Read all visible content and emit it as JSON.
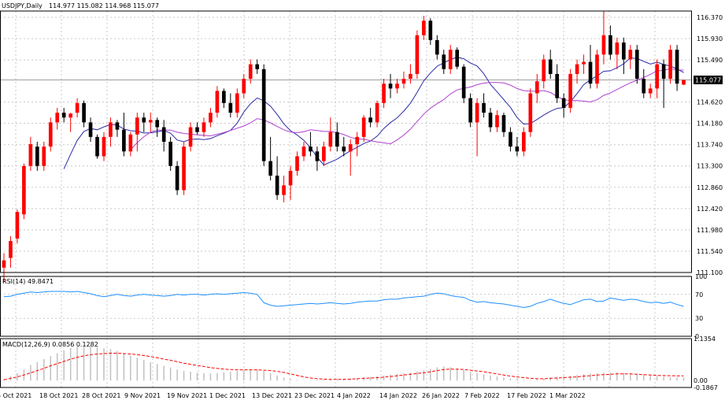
{
  "header": {
    "symbol_tf": "USDJPY,Daily",
    "ohlc": "114.977 115.082 114.968 115.077"
  },
  "current_price_label": "115.077",
  "colors": {
    "bull": "#ff0000",
    "bear": "#000000",
    "ma_fast": "#2a2aa8",
    "ma_slow": "#b040d0",
    "rsi": "#1e90ff",
    "macd_hist": "#c0c0c0",
    "macd_signal": "#ff0000",
    "grid": "#c8c8c8"
  },
  "chart_data": [
    {
      "type": "candlestick",
      "title": "USDJPY,Daily",
      "ylim": [
        111.1,
        116.5
      ],
      "y_ticks": [
        "116.370",
        "115.930",
        "115.490",
        "115.077",
        "114.620",
        "114.180",
        "113.740",
        "113.300",
        "112.860",
        "112.420",
        "111.980",
        "111.540",
        "111.100"
      ],
      "x_ticks": [
        "5 Oct 2021",
        "18 Oct 2021",
        "28 Oct 2021",
        "9 Nov 2021",
        "19 Nov 2021",
        "1 Dec 2021",
        "13 Dec 2021",
        "23 Dec 2021",
        "4 Jan 2022",
        "14 Jan 2022",
        "26 Jan 2022",
        "7 Feb 2022",
        "17 Feb 2022",
        "1 Mar 2022"
      ],
      "candles": [
        {
          "o": 111.2,
          "h": 111.5,
          "l": 110.9,
          "c": 111.35
        },
        {
          "o": 111.4,
          "h": 111.85,
          "l": 111.2,
          "c": 111.75
        },
        {
          "o": 111.8,
          "h": 112.4,
          "l": 111.7,
          "c": 112.35
        },
        {
          "o": 112.3,
          "h": 113.35,
          "l": 112.2,
          "c": 113.3
        },
        {
          "o": 113.3,
          "h": 113.9,
          "l": 113.2,
          "c": 113.75
        },
        {
          "o": 113.7,
          "h": 113.8,
          "l": 113.2,
          "c": 113.3
        },
        {
          "o": 113.3,
          "h": 113.8,
          "l": 113.2,
          "c": 113.7
        },
        {
          "o": 113.7,
          "h": 114.3,
          "l": 113.6,
          "c": 114.2
        },
        {
          "o": 114.2,
          "h": 114.5,
          "l": 114.05,
          "c": 114.4
        },
        {
          "o": 114.4,
          "h": 114.5,
          "l": 114.2,
          "c": 114.3
        },
        {
          "o": 114.3,
          "h": 114.4,
          "l": 114.0,
          "c": 114.38
        },
        {
          "o": 114.4,
          "h": 114.7,
          "l": 114.3,
          "c": 114.6
        },
        {
          "o": 114.6,
          "h": 114.65,
          "l": 114.1,
          "c": 114.2
        },
        {
          "o": 114.2,
          "h": 114.3,
          "l": 113.8,
          "c": 113.9
        },
        {
          "o": 113.9,
          "h": 113.95,
          "l": 113.45,
          "c": 113.5
        },
        {
          "o": 113.5,
          "h": 114.0,
          "l": 113.4,
          "c": 113.9
        },
        {
          "o": 113.9,
          "h": 114.3,
          "l": 113.7,
          "c": 114.2
        },
        {
          "o": 114.2,
          "h": 114.25,
          "l": 113.9,
          "c": 114.05
        },
        {
          "o": 114.05,
          "h": 114.4,
          "l": 113.5,
          "c": 113.6
        },
        {
          "o": 113.6,
          "h": 114.0,
          "l": 113.5,
          "c": 113.95
        },
        {
          "o": 113.95,
          "h": 114.4,
          "l": 113.6,
          "c": 114.3
        },
        {
          "o": 114.3,
          "h": 114.4,
          "l": 114.0,
          "c": 114.2
        },
        {
          "o": 114.2,
          "h": 114.4,
          "l": 114.0,
          "c": 114.25
        },
        {
          "o": 114.25,
          "h": 114.3,
          "l": 113.9,
          "c": 114.1
        },
        {
          "o": 114.1,
          "h": 114.25,
          "l": 113.6,
          "c": 113.8
        },
        {
          "o": 113.8,
          "h": 113.9,
          "l": 113.2,
          "c": 113.3
        },
        {
          "o": 113.3,
          "h": 113.4,
          "l": 112.7,
          "c": 112.8
        },
        {
          "o": 112.8,
          "h": 113.8,
          "l": 112.7,
          "c": 113.7
        },
        {
          "o": 113.7,
          "h": 114.2,
          "l": 113.6,
          "c": 114.1
        },
        {
          "o": 114.1,
          "h": 114.2,
          "l": 113.95,
          "c": 114.0
        },
        {
          "o": 114.0,
          "h": 114.3,
          "l": 113.9,
          "c": 114.2
        },
        {
          "o": 114.2,
          "h": 114.5,
          "l": 114.1,
          "c": 114.4
        },
        {
          "o": 114.4,
          "h": 114.95,
          "l": 114.3,
          "c": 114.85
        },
        {
          "o": 114.85,
          "h": 114.9,
          "l": 114.5,
          "c": 114.6
        },
        {
          "o": 114.6,
          "h": 114.8,
          "l": 114.3,
          "c": 114.4
        },
        {
          "o": 114.4,
          "h": 114.9,
          "l": 114.3,
          "c": 114.8
        },
        {
          "o": 114.8,
          "h": 115.2,
          "l": 114.7,
          "c": 115.1
        },
        {
          "o": 115.1,
          "h": 115.5,
          "l": 115.0,
          "c": 115.4
        },
        {
          "o": 115.4,
          "h": 115.5,
          "l": 115.2,
          "c": 115.3
        },
        {
          "o": 115.3,
          "h": 115.4,
          "l": 113.3,
          "c": 113.4
        },
        {
          "o": 113.4,
          "h": 113.9,
          "l": 113.0,
          "c": 113.1
        },
        {
          "o": 113.1,
          "h": 113.5,
          "l": 112.6,
          "c": 112.7
        },
        {
          "o": 112.7,
          "h": 113.1,
          "l": 112.55,
          "c": 112.9
        },
        {
          "o": 112.9,
          "h": 113.3,
          "l": 112.6,
          "c": 113.2
        },
        {
          "o": 113.2,
          "h": 113.6,
          "l": 113.1,
          "c": 113.5
        },
        {
          "o": 113.5,
          "h": 113.8,
          "l": 113.4,
          "c": 113.7
        },
        {
          "o": 113.7,
          "h": 114.0,
          "l": 113.5,
          "c": 113.6
        },
        {
          "o": 113.6,
          "h": 113.7,
          "l": 113.2,
          "c": 113.4
        },
        {
          "o": 113.4,
          "h": 113.8,
          "l": 113.3,
          "c": 113.7
        },
        {
          "o": 113.7,
          "h": 114.3,
          "l": 113.6,
          "c": 114.0
        },
        {
          "o": 114.0,
          "h": 114.2,
          "l": 113.6,
          "c": 113.7
        },
        {
          "o": 113.7,
          "h": 113.9,
          "l": 113.5,
          "c": 113.6
        },
        {
          "o": 113.6,
          "h": 113.85,
          "l": 113.1,
          "c": 113.75
        },
        {
          "o": 113.75,
          "h": 114.0,
          "l": 113.5,
          "c": 113.9
        },
        {
          "o": 113.9,
          "h": 114.35,
          "l": 113.8,
          "c": 114.3
        },
        {
          "o": 114.3,
          "h": 114.5,
          "l": 114.1,
          "c": 114.2
        },
        {
          "o": 114.2,
          "h": 114.65,
          "l": 114.1,
          "c": 114.6
        },
        {
          "o": 114.6,
          "h": 115.1,
          "l": 114.5,
          "c": 115.0
        },
        {
          "o": 115.0,
          "h": 115.2,
          "l": 114.7,
          "c": 114.9
        },
        {
          "o": 114.9,
          "h": 115.1,
          "l": 114.8,
          "c": 115.0
        },
        {
          "o": 115.0,
          "h": 115.25,
          "l": 114.9,
          "c": 115.1
        },
        {
          "o": 115.1,
          "h": 115.4,
          "l": 115.0,
          "c": 115.2
        },
        {
          "o": 115.2,
          "h": 116.1,
          "l": 115.1,
          "c": 116.0
        },
        {
          "o": 116.0,
          "h": 116.4,
          "l": 115.9,
          "c": 116.3
        },
        {
          "o": 116.3,
          "h": 116.35,
          "l": 115.8,
          "c": 115.9
        },
        {
          "o": 115.9,
          "h": 116.0,
          "l": 115.5,
          "c": 115.6
        },
        {
          "o": 115.6,
          "h": 115.7,
          "l": 115.2,
          "c": 115.3
        },
        {
          "o": 115.3,
          "h": 115.8,
          "l": 115.2,
          "c": 115.7
        },
        {
          "o": 115.7,
          "h": 115.75,
          "l": 115.3,
          "c": 115.35
        },
        {
          "o": 115.35,
          "h": 115.4,
          "l": 114.6,
          "c": 114.7
        },
        {
          "o": 114.7,
          "h": 114.8,
          "l": 114.1,
          "c": 114.2
        },
        {
          "o": 114.2,
          "h": 114.7,
          "l": 113.5,
          "c": 114.6
        },
        {
          "o": 114.6,
          "h": 114.8,
          "l": 114.3,
          "c": 114.4
        },
        {
          "o": 114.4,
          "h": 114.5,
          "l": 114.0,
          "c": 114.1
        },
        {
          "o": 114.1,
          "h": 114.45,
          "l": 114.0,
          "c": 114.35
        },
        {
          "o": 114.35,
          "h": 114.4,
          "l": 113.9,
          "c": 114.0
        },
        {
          "o": 114.0,
          "h": 114.1,
          "l": 113.6,
          "c": 113.7
        },
        {
          "o": 113.7,
          "h": 113.9,
          "l": 113.5,
          "c": 113.6
        },
        {
          "o": 113.6,
          "h": 114.1,
          "l": 113.5,
          "c": 114.0
        },
        {
          "o": 114.0,
          "h": 114.9,
          "l": 113.9,
          "c": 114.8
        },
        {
          "o": 114.8,
          "h": 115.2,
          "l": 114.6,
          "c": 115.05
        },
        {
          "o": 115.05,
          "h": 115.6,
          "l": 114.9,
          "c": 115.5
        },
        {
          "o": 115.5,
          "h": 115.7,
          "l": 115.1,
          "c": 115.2
        },
        {
          "o": 115.2,
          "h": 115.4,
          "l": 114.6,
          "c": 114.7
        },
        {
          "o": 114.7,
          "h": 114.8,
          "l": 114.3,
          "c": 114.5
        },
        {
          "o": 114.5,
          "h": 115.3,
          "l": 114.4,
          "c": 115.2
        },
        {
          "o": 115.2,
          "h": 115.5,
          "l": 115.0,
          "c": 115.4
        },
        {
          "o": 115.4,
          "h": 115.6,
          "l": 115.2,
          "c": 115.45
        },
        {
          "o": 115.45,
          "h": 115.8,
          "l": 114.9,
          "c": 115.0
        },
        {
          "o": 115.0,
          "h": 115.7,
          "l": 114.9,
          "c": 115.6
        },
        {
          "o": 115.6,
          "h": 116.5,
          "l": 115.4,
          "c": 116.0
        },
        {
          "o": 116.0,
          "h": 116.2,
          "l": 115.5,
          "c": 115.6
        },
        {
          "o": 115.6,
          "h": 115.95,
          "l": 115.3,
          "c": 115.85
        },
        {
          "o": 115.85,
          "h": 115.95,
          "l": 115.2,
          "c": 115.5
        },
        {
          "o": 115.5,
          "h": 115.8,
          "l": 115.3,
          "c": 115.7
        },
        {
          "o": 115.7,
          "h": 115.8,
          "l": 115.0,
          "c": 115.1
        },
        {
          "o": 115.1,
          "h": 115.3,
          "l": 114.7,
          "c": 114.8
        },
        {
          "o": 114.8,
          "h": 115.0,
          "l": 114.7,
          "c": 114.9
        },
        {
          "o": 114.9,
          "h": 115.5,
          "l": 114.7,
          "c": 115.4
        },
        {
          "o": 115.4,
          "h": 115.5,
          "l": 114.5,
          "c": 115.1
        },
        {
          "o": 115.1,
          "h": 115.8,
          "l": 115.0,
          "c": 115.7
        },
        {
          "o": 115.7,
          "h": 115.8,
          "l": 114.85,
          "c": 115.0
        },
        {
          "o": 114.98,
          "h": 115.08,
          "l": 114.97,
          "c": 115.077
        }
      ]
    },
    {
      "type": "line",
      "title": "RSI(14) 49.8471",
      "ylim": [
        0,
        100
      ],
      "y_ticks": [
        "100",
        "70",
        "30",
        "0"
      ],
      "values": [
        66,
        67,
        70,
        72,
        74,
        73,
        74,
        75,
        75,
        75,
        74,
        75,
        73,
        71,
        68,
        66,
        68,
        70,
        68,
        67,
        69,
        70,
        69,
        68,
        67,
        68,
        70,
        69,
        70,
        70,
        69,
        70,
        71,
        70,
        71,
        72,
        73,
        72,
        70,
        56,
        52,
        50,
        51,
        52,
        53,
        54,
        55,
        54,
        55,
        56,
        55,
        54,
        55,
        57,
        58,
        59,
        59,
        61,
        62,
        62,
        64,
        65,
        66,
        67,
        70,
        72,
        71,
        68,
        66,
        65,
        60,
        57,
        58,
        56,
        55,
        54,
        52,
        50,
        48,
        50,
        55,
        58,
        62,
        58,
        55,
        53,
        57,
        61,
        62,
        58,
        59,
        64,
        62,
        60,
        62,
        61,
        58,
        56,
        57,
        55,
        57,
        53,
        50
      ]
    },
    {
      "type": "bar",
      "title": "MACD(12,26,9) 0.0856 0.1282",
      "ylim": [
        -0.1867,
        1.1354
      ],
      "y_ticks": [
        "1.1354",
        "0.00",
        "-0.1867"
      ],
      "series": [
        {
          "name": "MACD",
          "values": [
            0.05,
            0.12,
            0.2,
            0.3,
            0.42,
            0.5,
            0.58,
            0.66,
            0.74,
            0.82,
            0.88,
            0.92,
            0.94,
            0.95,
            0.92,
            0.88,
            0.85,
            0.8,
            0.74,
            0.68,
            0.62,
            0.56,
            0.5,
            0.45,
            0.4,
            0.35,
            0.3,
            0.26,
            0.24,
            0.22,
            0.2,
            0.19,
            0.2,
            0.22,
            0.24,
            0.26,
            0.28,
            0.29,
            0.3,
            0.26,
            0.2,
            0.14,
            0.08,
            0.04,
            0.02,
            0.01,
            0.01,
            0.02,
            0.02,
            0.03,
            0.04,
            0.05,
            0.06,
            0.07,
            0.09,
            0.1,
            0.12,
            0.14,
            0.16,
            0.18,
            0.2,
            0.22,
            0.25,
            0.28,
            0.32,
            0.36,
            0.38,
            0.36,
            0.32,
            0.28,
            0.24,
            0.2,
            0.17,
            0.14,
            0.11,
            0.08,
            0.06,
            0.04,
            0.02,
            0.02,
            0.03,
            0.05,
            0.08,
            0.1,
            0.12,
            0.13,
            0.15,
            0.17,
            0.19,
            0.2,
            0.21,
            0.22,
            0.22,
            0.21,
            0.2,
            0.18,
            0.16,
            0.14,
            0.12,
            0.1,
            0.09,
            0.085,
            0.0856
          ]
        },
        {
          "name": "Signal",
          "values": [
            0.02,
            0.06,
            0.1,
            0.15,
            0.21,
            0.27,
            0.33,
            0.4,
            0.46,
            0.52,
            0.58,
            0.63,
            0.67,
            0.7,
            0.72,
            0.73,
            0.74,
            0.74,
            0.73,
            0.72,
            0.7,
            0.68,
            0.65,
            0.62,
            0.58,
            0.55,
            0.51,
            0.47,
            0.44,
            0.41,
            0.38,
            0.35,
            0.33,
            0.31,
            0.3,
            0.29,
            0.29,
            0.29,
            0.29,
            0.28,
            0.27,
            0.25,
            0.22,
            0.18,
            0.14,
            0.1,
            0.07,
            0.05,
            0.04,
            0.03,
            0.03,
            0.03,
            0.04,
            0.05,
            0.06,
            0.07,
            0.08,
            0.09,
            0.11,
            0.13,
            0.15,
            0.17,
            0.19,
            0.21,
            0.24,
            0.27,
            0.3,
            0.31,
            0.31,
            0.3,
            0.28,
            0.26,
            0.24,
            0.21,
            0.18,
            0.15,
            0.12,
            0.1,
            0.08,
            0.06,
            0.05,
            0.05,
            0.06,
            0.07,
            0.08,
            0.09,
            0.1,
            0.12,
            0.13,
            0.15,
            0.16,
            0.17,
            0.18,
            0.18,
            0.18,
            0.17,
            0.16,
            0.15,
            0.14,
            0.135,
            0.13,
            0.129,
            0.1282
          ]
        }
      ]
    }
  ]
}
